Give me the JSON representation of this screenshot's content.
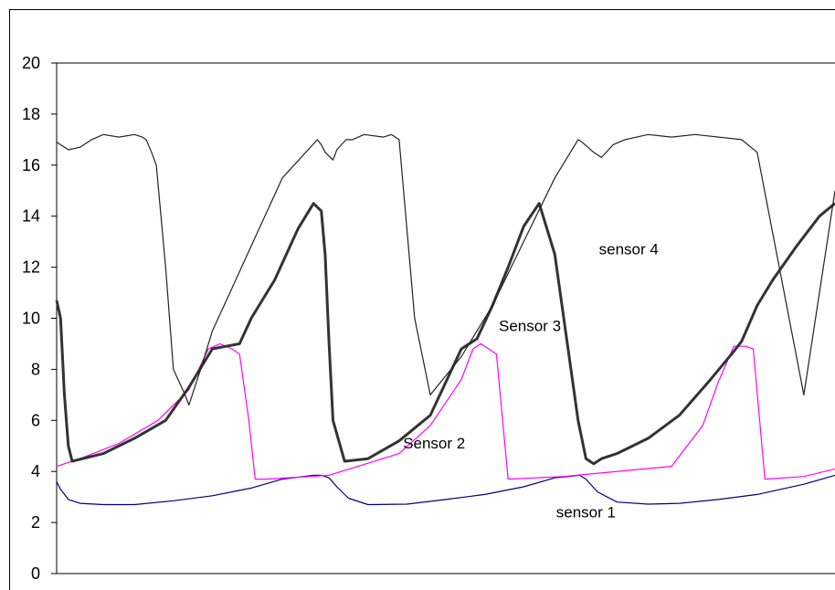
{
  "chart_data": {
    "type": "line",
    "title": "",
    "xlabel": "",
    "ylabel": "",
    "ylim": [
      0,
      20
    ],
    "xlim": [
      0,
      1000
    ],
    "y_ticks": [
      "0",
      "2",
      "4",
      "6",
      "8",
      "10",
      "12",
      "14",
      "16",
      "18",
      "20"
    ],
    "grid": false,
    "series": [
      {
        "name": "sensor 1",
        "color": "#000080",
        "x": [
          0,
          5,
          15,
          30,
          60,
          100,
          150,
          200,
          250,
          290,
          330,
          340,
          350,
          360,
          375,
          400,
          450,
          500,
          550,
          600,
          640,
          672,
          680,
          695,
          720,
          760,
          800,
          850,
          900,
          960,
          1000
        ],
        "y": [
          3.6,
          3.3,
          2.9,
          2.75,
          2.7,
          2.7,
          2.85,
          3.05,
          3.35,
          3.7,
          3.85,
          3.85,
          3.75,
          3.4,
          2.95,
          2.7,
          2.72,
          2.9,
          3.1,
          3.4,
          3.75,
          3.85,
          3.7,
          3.2,
          2.8,
          2.72,
          2.75,
          2.9,
          3.1,
          3.5,
          3.85
        ]
      },
      {
        "name": "Sensor 2",
        "color": "#ff00ff",
        "x": [
          0,
          30,
          80,
          130,
          170,
          195,
          210,
          225,
          235,
          247,
          255,
          270,
          350,
          440,
          480,
          520,
          535,
          545,
          555,
          565,
          580,
          650,
          790,
          830,
          850,
          870,
          885,
          895,
          910,
          960,
          1000
        ],
        "y": [
          4.2,
          4.5,
          5.1,
          6.0,
          7.2,
          8.8,
          9.0,
          8.8,
          8.6,
          6.0,
          3.7,
          3.7,
          3.85,
          4.7,
          5.8,
          7.6,
          8.8,
          9.0,
          8.8,
          8.6,
          3.7,
          3.8,
          4.2,
          5.8,
          7.5,
          8.9,
          8.9,
          8.8,
          3.7,
          3.8,
          4.1
        ]
      },
      {
        "name": "Sensor 3",
        "color": "#333333",
        "x": [
          0,
          5,
          10,
          15,
          20,
          60,
          100,
          140,
          170,
          200,
          235,
          250,
          280,
          310,
          330,
          340,
          345,
          350,
          355,
          370,
          400,
          440,
          480,
          500,
          520,
          540,
          560,
          580,
          600,
          620,
          640,
          670,
          680,
          690,
          700,
          720,
          760,
          800,
          840,
          870,
          880,
          900,
          920,
          950,
          980,
          1000
        ],
        "y": [
          10.7,
          10.0,
          7.0,
          5.0,
          4.4,
          4.7,
          5.3,
          6.0,
          7.3,
          8.8,
          9.0,
          10.0,
          11.5,
          13.5,
          14.5,
          14.2,
          12.5,
          9.0,
          6.0,
          4.4,
          4.5,
          5.2,
          6.2,
          7.5,
          8.8,
          9.2,
          10.5,
          12.0,
          13.6,
          14.5,
          12.5,
          6.0,
          4.5,
          4.3,
          4.5,
          4.7,
          5.3,
          6.2,
          7.6,
          8.7,
          9.1,
          10.5,
          11.5,
          12.8,
          14.0,
          14.5
        ]
      },
      {
        "name": "sensor 4",
        "color": "#222222",
        "x": [
          0,
          15,
          30,
          45,
          60,
          80,
          100,
          110,
          115,
          122,
          128,
          140,
          150,
          165,
          170,
          185,
          200,
          230,
          260,
          290,
          335,
          340,
          345,
          355,
          360,
          372,
          380,
          395,
          420,
          430,
          440,
          460,
          480,
          520,
          560,
          600,
          640,
          670,
          675,
          690,
          700,
          715,
          730,
          760,
          790,
          820,
          880,
          900,
          960,
          1000
        ],
        "y": [
          16.9,
          16.6,
          16.7,
          17.0,
          17.2,
          17.1,
          17.2,
          17.1,
          17.0,
          16.5,
          16.0,
          12.0,
          8.0,
          7.0,
          6.6,
          8.0,
          9.5,
          11.5,
          13.5,
          15.5,
          17.0,
          16.8,
          16.5,
          16.2,
          16.6,
          17.0,
          17.0,
          17.2,
          17.1,
          17.2,
          17.0,
          10.0,
          7.0,
          8.5,
          10.5,
          13.0,
          15.5,
          17.0,
          16.9,
          16.5,
          16.3,
          16.8,
          17.0,
          17.2,
          17.1,
          17.2,
          17.0,
          16.5,
          7.0,
          15.0
        ]
      }
    ],
    "annotations": [
      {
        "text": "sensor 4",
        "x": 735,
        "y": 12.5
      },
      {
        "text": "Sensor 3",
        "x": 608,
        "y": 9.5
      },
      {
        "text": "Sensor 2",
        "x": 485,
        "y": 4.9
      },
      {
        "text": "sensor 1",
        "x": 680,
        "y": 2.2
      }
    ]
  }
}
